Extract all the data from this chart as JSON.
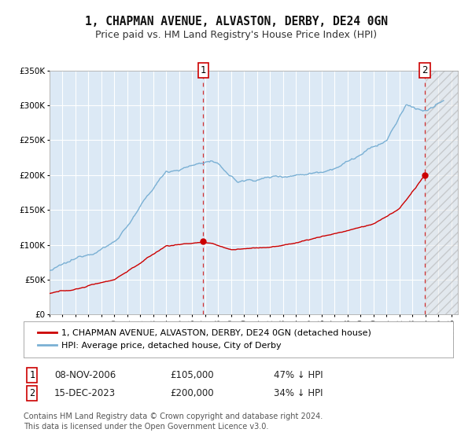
{
  "title": "1, CHAPMAN AVENUE, ALVASTON, DERBY, DE24 0GN",
  "subtitle": "Price paid vs. HM Land Registry's House Price Index (HPI)",
  "ylim": [
    0,
    350000
  ],
  "xlim_start": 1995.0,
  "xlim_end": 2026.5,
  "yticks": [
    0,
    50000,
    100000,
    150000,
    200000,
    250000,
    300000,
    350000
  ],
  "ytick_labels": [
    "£0",
    "£50K",
    "£100K",
    "£150K",
    "£200K",
    "£250K",
    "£300K",
    "£350K"
  ],
  "xticks": [
    1995,
    1996,
    1997,
    1998,
    1999,
    2000,
    2001,
    2002,
    2003,
    2004,
    2005,
    2006,
    2007,
    2008,
    2009,
    2010,
    2011,
    2012,
    2013,
    2014,
    2015,
    2016,
    2017,
    2018,
    2019,
    2020,
    2021,
    2022,
    2023,
    2024,
    2025,
    2026
  ],
  "red_line_color": "#cc0000",
  "blue_line_color": "#7ab0d4",
  "background_color": "#ffffff",
  "plot_bg_color": "#dce9f5",
  "grid_color": "#ffffff",
  "hatch_color": "#bbbbbb",
  "marker1_date": 2006.86,
  "marker1_value": 105000,
  "marker2_date": 2023.96,
  "marker2_value": 200000,
  "hatch_start": 2024.0,
  "legend1_label": "1, CHAPMAN AVENUE, ALVASTON, DERBY, DE24 0GN (detached house)",
  "legend2_label": "HPI: Average price, detached house, City of Derby",
  "annotation1_num": "1",
  "annotation2_num": "2",
  "table_row1": [
    "1",
    "08-NOV-2006",
    "£105,000",
    "47% ↓ HPI"
  ],
  "table_row2": [
    "2",
    "15-DEC-2023",
    "£200,000",
    "34% ↓ HPI"
  ],
  "footer_line1": "Contains HM Land Registry data © Crown copyright and database right 2024.",
  "footer_line2": "This data is licensed under the Open Government Licence v3.0.",
  "title_fontsize": 10.5,
  "subtitle_fontsize": 9,
  "tick_fontsize": 7.5,
  "legend_fontsize": 8,
  "footer_fontsize": 7
}
